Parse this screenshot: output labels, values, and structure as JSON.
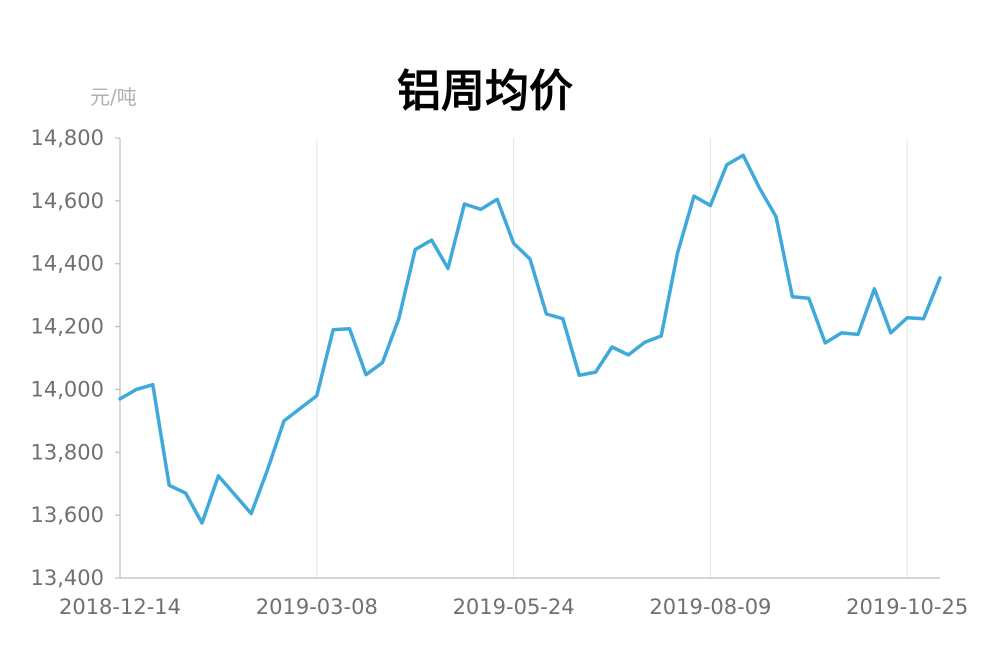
{
  "chart_data": {
    "type": "line",
    "title": "铝周均价",
    "ylabel": "元/吨",
    "xlabel": "",
    "ylim": [
      13400,
      14800
    ],
    "yticks": [
      13400,
      13600,
      13800,
      14000,
      14200,
      14400,
      14600,
      14800
    ],
    "ytick_labels": [
      "13,400",
      "13,600",
      "13,800",
      "14,000",
      "14,200",
      "14,400",
      "14,600",
      "14,800"
    ],
    "x_tick_labels": [
      "2018-12-14",
      "2019-03-08",
      "2019-05-24",
      "2019-08-09",
      "2019-10-25"
    ],
    "grid": {
      "vertical": true,
      "horizontal": false
    },
    "legend": "none",
    "colors": {
      "line": "#3fa9dc"
    },
    "series": [
      {
        "values": [
          13970,
          14000,
          14015,
          13695,
          13670,
          13575,
          13725,
          13665,
          13605,
          13745,
          13900,
          13940,
          13980,
          14190,
          14193,
          14047,
          14085,
          14225,
          14445,
          14475,
          14385,
          14590,
          14573,
          14605,
          14465,
          14415,
          14240,
          14225,
          14045,
          14055,
          14135,
          14110,
          14150,
          14170,
          14435,
          14615,
          14585,
          14715,
          14745,
          14640,
          14550,
          14295,
          14290,
          14148,
          14180,
          14175,
          14320,
          14180,
          14228,
          14225,
          14355
        ]
      }
    ]
  }
}
